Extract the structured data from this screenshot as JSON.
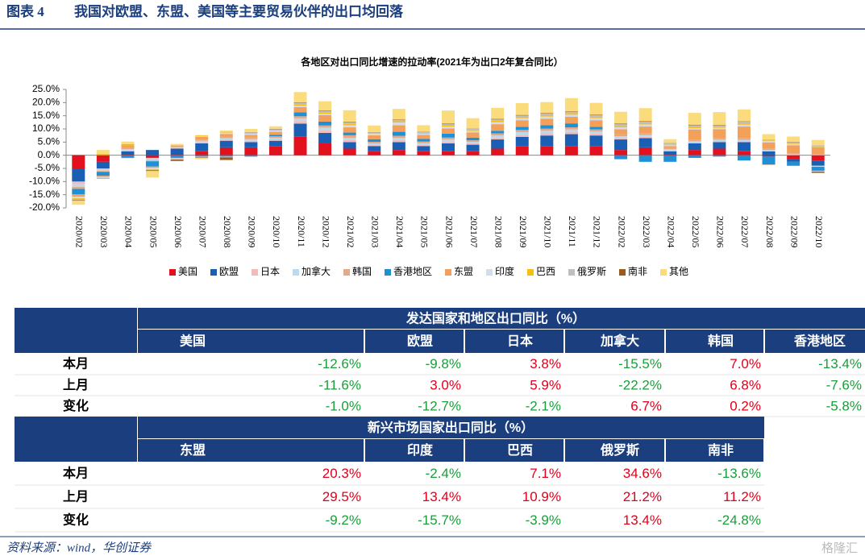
{
  "header": {
    "label": "图表 4",
    "title": "我国对欧盟、东盟、美国等主要贸易伙伴的出口均回落"
  },
  "chart_data": {
    "type": "bar",
    "stacked": true,
    "title": "各地区对出口同比增速的拉动率(2021年为出口2年复合同比）",
    "categories": [
      "2020/02",
      "2020/03",
      "2020/04",
      "2020/05",
      "2020/06",
      "2020/07",
      "2020/08",
      "2020/09",
      "2020/10",
      "2020/11",
      "2020/12",
      "2021/02",
      "2021/03",
      "2021/04",
      "2021/05",
      "2021/06",
      "2021/07",
      "2021/08",
      "2021/09",
      "2021/10",
      "2021/11",
      "2021/12",
      "2022/02",
      "2022/03",
      "2022/04",
      "2022/05",
      "2022/06",
      "2022/07",
      "2022/08",
      "2022/09",
      "2022/10"
    ],
    "ylim": [
      -20,
      25
    ],
    "yticks": [
      {
        "value": 25,
        "label": "25.0%"
      },
      {
        "value": 20,
        "label": "20.0%"
      },
      {
        "value": 15,
        "label": "15.0%"
      },
      {
        "value": 10,
        "label": "10.0%"
      },
      {
        "value": 5,
        "label": "5.0%"
      },
      {
        "value": 0,
        "label": "0.0%"
      },
      {
        "value": -5,
        "label": "-5.0%"
      },
      {
        "value": -10,
        "label": "-10.0%"
      },
      {
        "value": -15,
        "label": "-15.0%"
      },
      {
        "value": -20,
        "label": "-20.0%"
      }
    ],
    "legend": "bottom",
    "series": [
      {
        "name": "美国",
        "color": "#e3101e",
        "values": [
          -5,
          -2.5,
          0.5,
          -1,
          0.5,
          1.5,
          3,
          3,
          3.5,
          7,
          4.5,
          2.5,
          1.5,
          2,
          1.5,
          1.5,
          1.5,
          2.5,
          3.5,
          3.5,
          3.5,
          3.5,
          2,
          3,
          0.5,
          2,
          2.5,
          1.5,
          -0.5,
          -1.5,
          -2
        ]
      },
      {
        "name": "欧盟",
        "color": "#1a5fb4",
        "values": [
          -5,
          -2.5,
          1,
          2,
          2,
          3,
          2.5,
          2,
          2,
          5,
          4,
          2.5,
          2,
          3,
          2,
          3,
          2.5,
          3.5,
          3.5,
          4,
          4.5,
          4,
          4,
          3.5,
          1,
          2.5,
          2.5,
          3.5,
          1.5,
          -1,
          -2
        ]
      },
      {
        "name": "日本",
        "color": "#f2bcbc",
        "values": [
          -1,
          -0.5,
          0.3,
          -0.5,
          0.2,
          0.5,
          0.5,
          0.5,
          0.5,
          1,
          1,
          0.8,
          0.5,
          0.8,
          0.5,
          0.7,
          0.5,
          0.7,
          0.8,
          0.8,
          0.8,
          0.7,
          0.5,
          0.5,
          0.3,
          0.3,
          0.4,
          0.3,
          0.2,
          0.2,
          0.2
        ]
      },
      {
        "name": "加拿大",
        "color": "#bcd9ee",
        "values": [
          -1,
          -0.5,
          0.5,
          -0.5,
          0.3,
          0.5,
          0.5,
          0.6,
          0.6,
          1,
          1,
          0.8,
          0.5,
          0.8,
          0.6,
          0.8,
          0.6,
          0.8,
          1,
          1,
          1,
          0.8,
          0.7,
          0.7,
          0.5,
          0.5,
          0.5,
          0.5,
          0.3,
          0.2,
          -0.4
        ]
      },
      {
        "name": "韩国",
        "color": "#e4aa86",
        "values": [
          -0.8,
          -0.3,
          0.4,
          -0.3,
          0.2,
          0.5,
          0.6,
          0.6,
          0.6,
          0.8,
          0.8,
          1,
          0.6,
          0.8,
          0.6,
          0.7,
          0.6,
          0.8,
          0.8,
          0.8,
          0.8,
          0.8,
          0.7,
          0.7,
          0.4,
          0.5,
          0.5,
          0.6,
          0.4,
          0.4,
          0.3
        ]
      },
      {
        "name": "香港地区",
        "color": "#1f8fd6",
        "values": [
          -2,
          -1.5,
          -1,
          -2,
          -1,
          -0.5,
          -0.5,
          -0.5,
          0.5,
          1.5,
          1.5,
          1,
          1,
          1.5,
          1,
          1.5,
          1,
          1,
          1.2,
          1.3,
          1.5,
          1,
          -1.5,
          -2.5,
          -2.5,
          -1,
          -0.5,
          -2,
          -3,
          -1.5,
          -1.5
        ]
      },
      {
        "name": "东盟",
        "color": "#f2a05a",
        "values": [
          -1,
          -0.5,
          1,
          -0.5,
          0.5,
          1,
          1,
          1,
          1.2,
          2,
          2.5,
          2,
          1.5,
          2.5,
          1.5,
          2,
          2,
          2.5,
          2.5,
          2.5,
          2.5,
          2.5,
          2,
          2.5,
          0.8,
          4,
          3.5,
          4.5,
          2.5,
          3,
          2.5
        ]
      },
      {
        "name": "印度",
        "color": "#d4dcf0",
        "values": [
          -0.5,
          -0.3,
          -0.2,
          -0.5,
          -0.2,
          0.3,
          0.5,
          0.5,
          0.5,
          0.5,
          0.5,
          0.8,
          0.5,
          1,
          0.5,
          0.7,
          0.5,
          0.8,
          0.8,
          0.8,
          0.8,
          0.8,
          0.7,
          0.8,
          0.3,
          0.5,
          0.5,
          0.7,
          0.5,
          0.5,
          -0.3
        ]
      },
      {
        "name": "巴西",
        "color": "#f7bf10",
        "values": [
          -0.3,
          0.5,
          0.2,
          -0.2,
          0.1,
          0.3,
          0.3,
          0.3,
          0.3,
          0.5,
          0.5,
          0.5,
          0.3,
          0.5,
          0.3,
          0.5,
          0.4,
          0.5,
          0.5,
          0.5,
          0.6,
          0.5,
          0.5,
          0.5,
          0.3,
          0.3,
          0.3,
          0.4,
          0.2,
          0.2,
          0.2
        ]
      },
      {
        "name": "俄罗斯",
        "color": "#bfbfbf",
        "values": [
          -0.5,
          -0.2,
          0.2,
          -0.2,
          -0.5,
          -0.3,
          -0.3,
          0.2,
          0.2,
          0.5,
          0.5,
          0.5,
          0.3,
          0.5,
          0.3,
          0.4,
          0.4,
          0.5,
          0.5,
          0.6,
          0.5,
          0.6,
          0.7,
          0.5,
          0.4,
          0.8,
          0.5,
          0.8,
          0.4,
          0.5,
          0.6
        ]
      },
      {
        "name": "南非",
        "color": "#9c5a1c",
        "values": [
          -0.2,
          -0.1,
          0.1,
          -0.3,
          -0.5,
          -0.2,
          -1,
          0.1,
          0.1,
          0.2,
          0.2,
          0.2,
          0.1,
          0.2,
          0.1,
          0.2,
          0.1,
          0.2,
          0.2,
          0.2,
          0.2,
          0.2,
          0.2,
          0.2,
          0.1,
          0.2,
          0.2,
          0.1,
          -0.1,
          0.1,
          -0.5
        ]
      },
      {
        "name": "其他",
        "color": "#fbdc7c",
        "values": [
          -1.5,
          1.5,
          1,
          -2.5,
          0.5,
          -0.5,
          0.5,
          1.2,
          1,
          4,
          3.5,
          4.5,
          2.5,
          4,
          2.5,
          5,
          4,
          4.2,
          4.5,
          4.2,
          5,
          4.5,
          4.5,
          5,
          1.5,
          4.5,
          5,
          4.5,
          2,
          2,
          2
        ]
      }
    ]
  },
  "tables": [
    {
      "title": "发达国家和地区出口同比（%）",
      "columns": [
        "美国",
        "欧盟",
        "日本",
        "加拿大",
        "韩国",
        "香港地区"
      ],
      "rows": [
        {
          "label": "本月",
          "cells": [
            "-12.6%",
            "-9.8%",
            "3.8%",
            "-15.5%",
            "7.0%",
            "-13.4%"
          ]
        },
        {
          "label": "上月",
          "cells": [
            "-11.6%",
            "3.0%",
            "5.9%",
            "-22.2%",
            "6.8%",
            "-7.6%"
          ]
        },
        {
          "label": "变化",
          "cells": [
            "-1.0%",
            "-12.7%",
            "-2.1%",
            "6.7%",
            "0.2%",
            "-5.8%"
          ]
        }
      ]
    },
    {
      "title": "新兴市场国家出口同比（%）",
      "columns": [
        "东盟",
        "印度",
        "巴西",
        "俄罗斯",
        "南非"
      ],
      "rows": [
        {
          "label": "本月",
          "cells": [
            "20.3%",
            "-2.4%",
            "7.1%",
            "34.6%",
            "-13.6%"
          ]
        },
        {
          "label": "上月",
          "cells": [
            "29.5%",
            "13.4%",
            "10.9%",
            "21.2%",
            "11.2%"
          ]
        },
        {
          "label": "变化",
          "cells": [
            "-9.2%",
            "-15.7%",
            "-3.9%",
            "13.4%",
            "-24.8%"
          ]
        }
      ]
    }
  ],
  "footer": {
    "source": "资料来源：wind，华创证券",
    "watermark": "格隆汇"
  }
}
